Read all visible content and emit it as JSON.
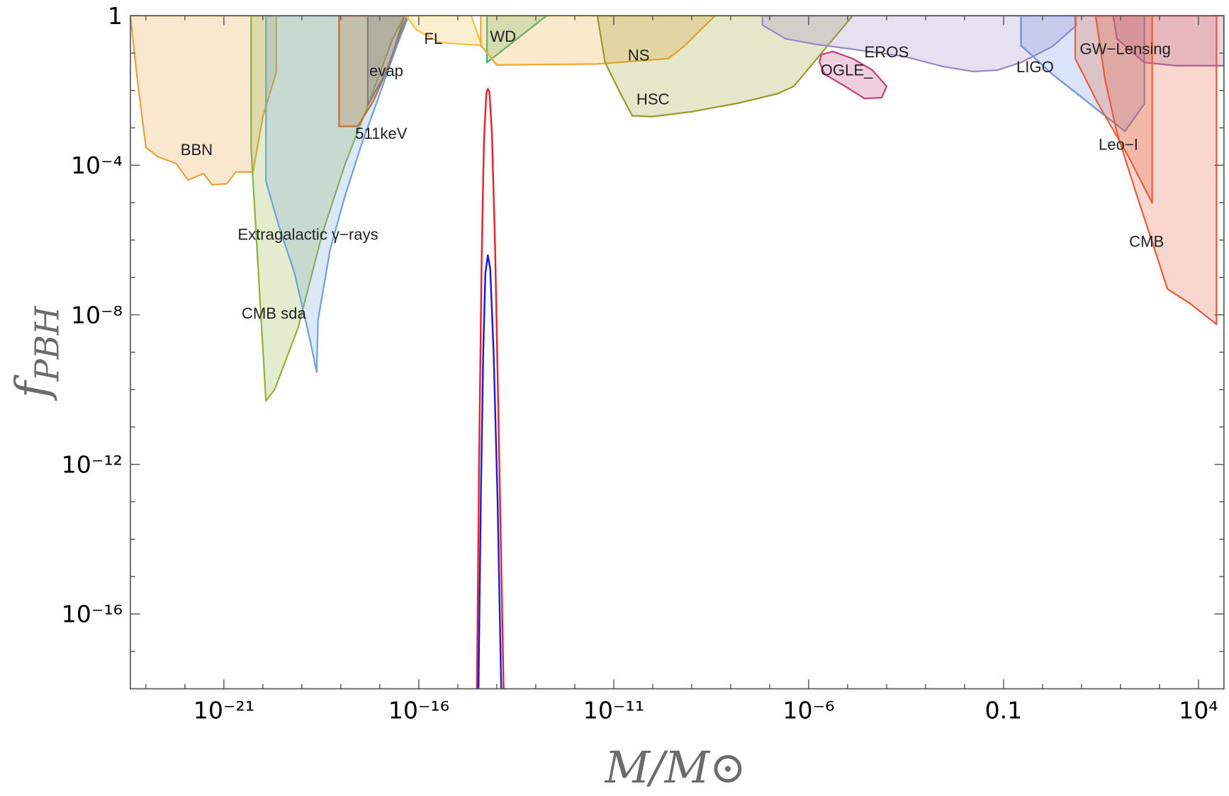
{
  "chart_data": {
    "type": "constraint-regions",
    "x_label": "M/M⊙",
    "y_label": "f",
    "y_label_sub": "PBH",
    "xscale": "log",
    "yscale": "log",
    "xlim": [
      4e-24,
      45000.0
    ],
    "ylim": [
      1e-18,
      1
    ],
    "xticks": [
      {
        "value": 1e-21,
        "label": "10⁻²¹"
      },
      {
        "value": 1e-16,
        "label": "10⁻¹⁶"
      },
      {
        "value": 1e-11,
        "label": "10⁻¹¹"
      },
      {
        "value": 1e-06,
        "label": "10⁻⁶"
      },
      0.1,
      {
        "value": 10000.0,
        "label": "10⁴"
      }
    ],
    "xminorticks": [
      1e-23,
      1e-22,
      1e-20,
      1e-19,
      1e-18,
      1e-17,
      1e-15,
      1e-14,
      1e-13,
      1e-12,
      1e-10,
      1e-09,
      1e-08,
      1e-07,
      1e-05,
      0.0001,
      0.001,
      0.01,
      1,
      10,
      100,
      1000
    ],
    "yticks": [
      1,
      {
        "value": 0.0001,
        "label": "10⁻⁴"
      },
      {
        "value": 1e-08,
        "label": "10⁻⁸"
      },
      {
        "value": 1e-12,
        "label": "10⁻¹²"
      },
      {
        "value": 1e-16,
        "label": "10⁻¹⁶"
      }
    ],
    "yminorticks": [
      0.1,
      0.01,
      0.001,
      1e-05,
      1e-06,
      1e-07,
      1e-09,
      1e-10,
      1e-11,
      1e-13,
      1e-14,
      1e-15,
      1e-17
    ],
    "series": [
      {
        "name": "BBN",
        "color": "#e8a040",
        "filled": true,
        "x": [
          4e-24,
          6e-24,
          1e-23,
          2e-23,
          6e-23,
          1.2e-22,
          3e-22,
          5e-22,
          1.2e-21,
          2e-21,
          5.6e-21,
          1e-20,
          2.2e-20,
          2.2e-20
        ],
        "y": [
          1,
          0.02,
          0.0003,
          0.00017,
          0.00011,
          4e-05,
          6e-05,
          3e-05,
          3.2e-05,
          6.6e-05,
          6.6e-05,
          0.002,
          0.03,
          1
        ]
      },
      {
        "name": "CMB sda",
        "color": "#8fb33a",
        "filled": true,
        "x": [
          5e-21,
          5e-21,
          1.2e-20,
          2e-20,
          8e-20,
          3.3e-19,
          1.3e-18,
          5.4e-18,
          2.1e-17,
          4.3e-17
        ],
        "y": [
          1,
          0.00028,
          5e-11,
          1e-10,
          4.5e-09,
          1.4e-06,
          0.00011,
          0.005,
          0.23,
          1
        ]
      },
      {
        "name": "Extragalactic γ−rays",
        "color": "#6fa3d8",
        "filled": true,
        "x": [
          1.2e-20,
          1.2e-20,
          2.6e-20,
          6.5e-20,
          1.7e-19,
          2.4e-19,
          2.6e-19,
          5.3e-19,
          1.3e-18,
          3.4e-18,
          8.5e-18,
          2.7e-17,
          5.5e-17
        ],
        "y": [
          1,
          3.7e-05,
          2.3e-06,
          1.3e-07,
          1.7e-09,
          2.9e-10,
          7.2e-09,
          5.5e-07,
          1.6e-05,
          0.00036,
          0.005,
          0.15,
          1
        ]
      },
      {
        "name": "511keV",
        "color": "#c0703a",
        "filled": true,
        "x": [
          9e-19,
          9e-19,
          2.7e-18,
          6.7e-18,
          1.7e-17,
          4.3e-17
        ],
        "y": [
          1,
          0.0011,
          0.0011,
          0.005,
          0.044,
          1
        ]
      },
      {
        "name": "evap",
        "color": "#7f7f7f",
        "filled": true,
        "x": [
          4.9e-18,
          4.9e-18,
          1.35e-17,
          3.5e-17,
          5e-17
        ],
        "y": [
          1,
          0.004,
          0.027,
          0.38,
          1
        ]
      },
      {
        "name": "FL",
        "color": "#f5c040",
        "filled": true,
        "x": [
          4.6e-17,
          8.7e-17,
          3.5e-16,
          4.1e-15,
          2.2e-15
        ],
        "y": [
          1,
          0.42,
          0.19,
          0.16,
          1
        ]
      },
      {
        "name": "WD",
        "color": "#3cb371",
        "filled": true,
        "x": [
          5.6e-15,
          5.6e-15,
          1.9e-13
        ],
        "y": [
          1,
          0.056,
          1
        ]
      },
      {
        "name": "NS",
        "color": "#f0a830",
        "filled": true,
        "x": [
          3.9e-15,
          3.9e-15,
          1e-14,
          3.8e-12,
          2.5e-10,
          6.3e-10,
          2.5e-09,
          4e-09
        ],
        "y": [
          1,
          0.16,
          0.048,
          0.051,
          0.071,
          0.15,
          0.62,
          1
        ]
      },
      {
        "name": "HSC",
        "color": "#9a9a2a",
        "filled": true,
        "x": [
          3.8e-12,
          6e-12,
          1.5e-11,
          3e-11,
          9.8e-11,
          1e-09,
          1.6e-08,
          1.6e-07,
          4.2e-07,
          1.35e-05
        ],
        "y": [
          1,
          0.056,
          0.0082,
          0.0021,
          0.002,
          0.0027,
          0.0046,
          0.0082,
          0.013,
          1
        ]
      },
      {
        "name": "OGLE_",
        "color": "#c0407a",
        "filled": true,
        "x": [
          2.1e-06,
          4.2e-06,
          1.35e-05,
          4.3e-05,
          0.0001,
          7.5e-05,
          2.7e-05,
          8.5e-06,
          2.6e-06,
          1.9e-06
        ],
        "y": [
          0.091,
          0.11,
          0.071,
          0.035,
          0.013,
          0.0064,
          0.0061,
          0.013,
          0.027,
          0.056
        ]
      },
      {
        "name": "EROS",
        "color": "#9a88c8",
        "filled": true,
        "x": [
          6.5e-08,
          6.5e-08,
          2.6e-07,
          1.6e-06,
          1.1e-05,
          0.00027,
          0.0027,
          0.017,
          0.071,
          0.28,
          1.8,
          7.2,
          7.2
        ],
        "y": [
          1,
          0.56,
          0.24,
          0.17,
          0.13,
          0.082,
          0.044,
          0.032,
          0.035,
          0.056,
          0.15,
          0.54,
          1
        ]
      },
      {
        "name": "LIGO",
        "color": "#6a8ee0",
        "filled": true,
        "x": [
          0.28,
          0.28,
          1.8,
          25,
          130,
          410,
          410
        ],
        "y": [
          1,
          0.16,
          0.027,
          0.0031,
          0.00081,
          0.0044,
          1
        ]
      },
      {
        "name": "GW−Lensing",
        "color": "#a060a8",
        "filled": true,
        "x": [
          65,
          81,
          410,
          2600,
          45000.0,
          45000.0
        ],
        "y": [
          1,
          0.24,
          0.056,
          0.046,
          0.046,
          1
        ]
      },
      {
        "name": "Leo−I",
        "color": "#e8603c",
        "filled": true,
        "x": [
          6.9,
          6.9,
          25,
          160,
          650,
          650
        ],
        "y": [
          1,
          0.071,
          0.005,
          0.00017,
          9.8e-06,
          1
        ]
      },
      {
        "name": "CMB",
        "color": "#e85a3a",
        "filled": true,
        "x": [
          23,
          40,
          81,
          260,
          650,
          1600,
          6500,
          29000.0,
          29000.0
        ],
        "y": [
          1,
          0.02,
          0.00074,
          1.6e-05,
          8.9e-07,
          4.9e-08,
          1.9e-08,
          5.6e-09,
          1
        ]
      },
      {
        "color": "#e8202a",
        "filled": false,
        "x": [
          3.1e-15,
          3.5e-15,
          4.1e-15,
          4.7e-15,
          5.4e-15,
          5.9e-15,
          6.5e-15,
          7.5e-15,
          9.1e-15,
          1.15e-14,
          1.5e-14
        ],
        "y": [
          1e-18,
          7.8e-13,
          3.4e-07,
          0.00046,
          0.0082,
          0.011,
          0.009,
          0.00074,
          5.5e-07,
          2e-12,
          1e-18
        ]
      },
      {
        "color": "#1a1adc",
        "filled": false,
        "x": [
          3.4e-15,
          3.9e-15,
          4.5e-15,
          5.1e-15,
          5.9e-15,
          6.8e-15,
          8.3e-15,
          1.05e-14,
          1.3e-14
        ],
        "y": [
          1e-18,
          1.1e-13,
          1e-09,
          1.3e-07,
          3.9e-07,
          1.7e-07,
          1e-09,
          1.1e-13,
          1e-18
        ]
      }
    ]
  }
}
